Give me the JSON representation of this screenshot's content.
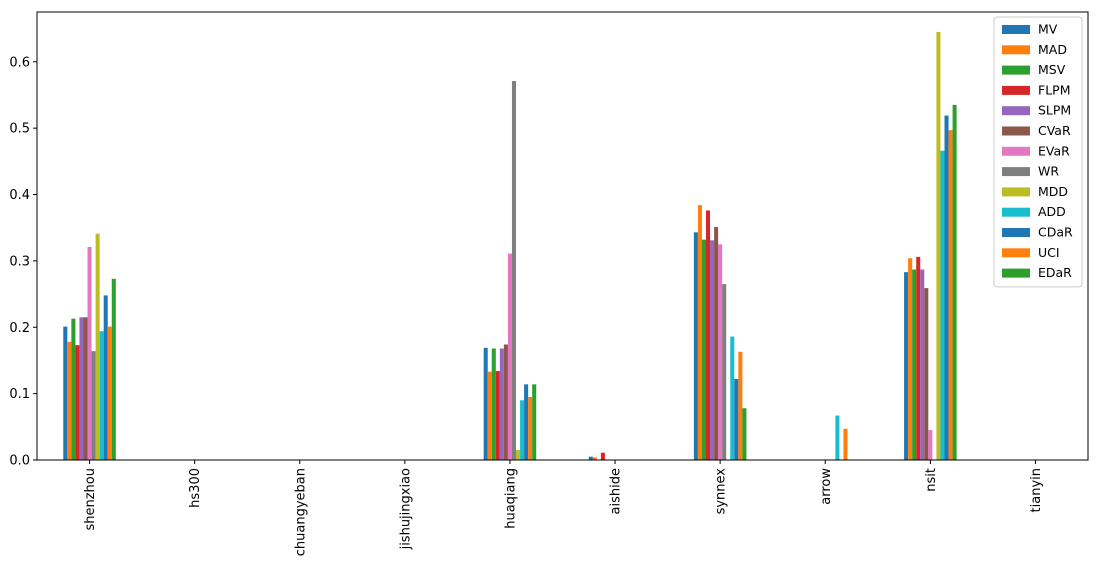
{
  "chart_data": {
    "type": "bar",
    "title": "",
    "xlabel": "",
    "ylabel": "",
    "ylim": [
      0,
      0.675
    ],
    "y_ticks": [
      "0.0",
      "0.1",
      "0.2",
      "0.3",
      "0.4",
      "0.5",
      "0.6"
    ],
    "grid": false,
    "legend_position": "top-right",
    "categories": [
      "shenzhou",
      "hs300",
      "chuangyeban",
      "jishujingxiao",
      "huaqiang",
      "aishide",
      "synnex",
      "arrow",
      "nsit",
      "tianyin"
    ],
    "series": [
      {
        "name": "MV",
        "color": "#1f77b4",
        "values": [
          0.201,
          0,
          0,
          0,
          0.169,
          0.005,
          0.343,
          0,
          0.283,
          0
        ]
      },
      {
        "name": "MAD",
        "color": "#ff7f0e",
        "values": [
          0.178,
          0,
          0,
          0,
          0.133,
          0.004,
          0.384,
          0,
          0.304,
          0
        ]
      },
      {
        "name": "MSV",
        "color": "#2ca02c",
        "values": [
          0.213,
          0,
          0,
          0,
          0.168,
          0,
          0.332,
          0,
          0.287,
          0
        ]
      },
      {
        "name": "FLPM",
        "color": "#d62728",
        "values": [
          0.173,
          0,
          0,
          0,
          0.134,
          0.011,
          0.376,
          0,
          0.306,
          0
        ]
      },
      {
        "name": "SLPM",
        "color": "#9467bd",
        "values": [
          0.215,
          0,
          0,
          0,
          0.168,
          0,
          0.331,
          0,
          0.287,
          0
        ]
      },
      {
        "name": "CVaR",
        "color": "#8c564b",
        "values": [
          0.215,
          0,
          0,
          0,
          0.174,
          0,
          0.351,
          0,
          0.259,
          0
        ]
      },
      {
        "name": "EVaR",
        "color": "#e377c2",
        "values": [
          0.321,
          0,
          0,
          0,
          0.311,
          0,
          0.325,
          0,
          0.045,
          0
        ]
      },
      {
        "name": "WR",
        "color": "#7f7f7f",
        "values": [
          0.164,
          0,
          0,
          0,
          0.571,
          0,
          0.265,
          0,
          0,
          0
        ]
      },
      {
        "name": "MDD",
        "color": "#bcbd22",
        "values": [
          0.341,
          0,
          0,
          0,
          0.015,
          0,
          0,
          0,
          0.645,
          0
        ]
      },
      {
        "name": "ADD",
        "color": "#17becf",
        "values": [
          0.194,
          0,
          0,
          0,
          0.09,
          0,
          0.186,
          0.067,
          0.466,
          0
        ]
      },
      {
        "name": "CDaR",
        "color": "#1f77b4",
        "values": [
          0.248,
          0,
          0,
          0,
          0.114,
          0,
          0.122,
          0,
          0.519,
          0
        ]
      },
      {
        "name": "UCI",
        "color": "#ff7f0e",
        "values": [
          0.201,
          0,
          0,
          0,
          0.095,
          0,
          0.163,
          0.047,
          0.497,
          0
        ]
      },
      {
        "name": "EDaR",
        "color": "#2ca02c",
        "values": [
          0.273,
          0,
          0,
          0,
          0.114,
          0,
          0.078,
          0,
          0.535,
          0
        ]
      }
    ]
  }
}
